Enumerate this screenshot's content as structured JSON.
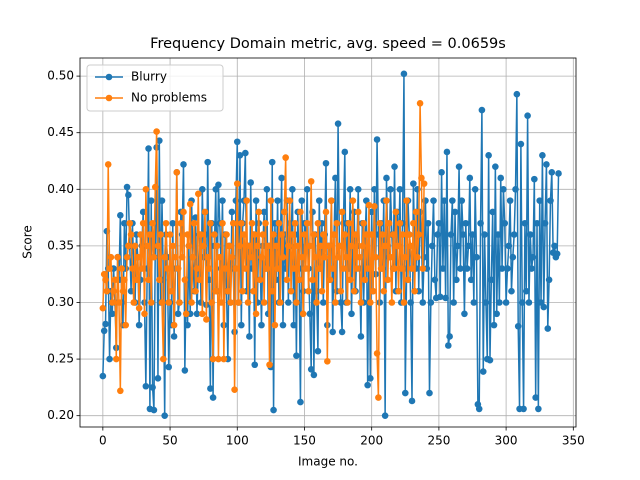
{
  "chart_data": {
    "type": "line",
    "title": "Frequency Domain metric, avg. speed = 0.0659s",
    "x_label": "Image no.",
    "y_label": "Score",
    "xlim": [
      -17,
      352
    ],
    "ylim": [
      0.19,
      0.516
    ],
    "xticks": [
      0,
      50,
      100,
      150,
      200,
      250,
      300,
      350
    ],
    "yticks": [
      {
        "value": 0.2,
        "label": "0.20"
      },
      {
        "value": 0.25,
        "label": "0.25"
      },
      {
        "value": 0.3,
        "label": "0.30"
      },
      {
        "value": 0.35,
        "label": "0.35"
      },
      {
        "value": 0.4,
        "label": "0.40"
      },
      {
        "value": 0.45,
        "label": "0.45"
      },
      {
        "value": 0.5,
        "label": "0.50"
      }
    ],
    "grid": true,
    "legend": "upper left",
    "series": [
      {
        "name": "Blurry",
        "color": "#1f77b4",
        "values": [
          0.235,
          0.275,
          0.281,
          0.363,
          0.33,
          0.25,
          0.31,
          0.29,
          0.33,
          0.3,
          0.26,
          0.34,
          0.32,
          0.377,
          0.3,
          0.28,
          0.37,
          0.33,
          0.402,
          0.395,
          0.35,
          0.31,
          0.37,
          0.33,
          0.3,
          0.36,
          0.34,
          0.28,
          0.32,
          0.35,
          0.38,
          0.3,
          0.226,
          0.33,
          0.436,
          0.206,
          0.39,
          0.225,
          0.205,
          0.35,
          0.437,
          0.233,
          0.443,
          0.3,
          0.39,
          0.32,
          0.2,
          0.36,
          0.34,
          0.243,
          0.3,
          0.28,
          0.37,
          0.27,
          0.33,
          0.415,
          0.29,
          0.3,
          0.38,
          0.36,
          0.422,
          0.24,
          0.32,
          0.28,
          0.35,
          0.29,
          0.39,
          0.34,
          0.31,
          0.375,
          0.29,
          0.33,
          0.36,
          0.3,
          0.4,
          0.34,
          0.36,
          0.298,
          0.424,
          0.32,
          0.224,
          0.37,
          0.216,
          0.35,
          0.4,
          0.31,
          0.404,
          0.37,
          0.33,
          0.39,
          0.28,
          0.36,
          0.31,
          0.25,
          0.35,
          0.3,
          0.38,
          0.33,
          0.274,
          0.39,
          0.442,
          0.3,
          0.43,
          0.28,
          0.37,
          0.39,
          0.432,
          0.31,
          0.35,
          0.27,
          0.406,
          0.33,
          0.36,
          0.245,
          0.39,
          0.3,
          0.37,
          0.34,
          0.28,
          0.35,
          0.38,
          0.33,
          0.4,
          0.29,
          0.35,
          0.243,
          0.424,
          0.205,
          0.37,
          0.32,
          0.39,
          0.3,
          0.35,
          0.41,
          0.28,
          0.36,
          0.33,
          0.39,
          0.3,
          0.37,
          0.35,
          0.4,
          0.28,
          0.36,
          0.253,
          0.38,
          0.33,
          0.212,
          0.39,
          0.31,
          0.37,
          0.35,
          0.4,
          0.33,
          0.29,
          0.241,
          0.38,
          0.236,
          0.36,
          0.31,
          0.257,
          0.39,
          0.33,
          0.37,
          0.3,
          0.36,
          0.423,
          0.28,
          0.35,
          0.33,
          0.39,
          0.274,
          0.36,
          0.41,
          0.31,
          0.458,
          0.35,
          0.3,
          0.274,
          0.37,
          0.433,
          0.3,
          0.37,
          0.33,
          0.4,
          0.29,
          0.36,
          0.38,
          0.31,
          0.35,
          0.4,
          0.33,
          0.27,
          0.37,
          0.3,
          0.35,
          0.39,
          0.227,
          0.36,
          0.233,
          0.38,
          0.31,
          0.4,
          0.325,
          0.444,
          0.36,
          0.3,
          0.37,
          0.33,
          0.39,
          0.2,
          0.41,
          0.35,
          0.34,
          0.4,
          0.36,
          0.33,
          0.42,
          0.31,
          0.38,
          0.35,
          0.4,
          0.3,
          0.37,
          0.502,
          0.22,
          0.33,
          0.39,
          0.36,
          0.3,
          0.213,
          0.405,
          0.35,
          0.33,
          0.4,
          0.31,
          0.38,
          0.36,
          0.3,
          0.34,
          0.39,
          0.33,
          0.37,
          0.22,
          0.3,
          0.35,
          0.39,
          0.32,
          0.304,
          0.36,
          0.37,
          0.305,
          0.415,
          0.33,
          0.39,
          0.304,
          0.433,
          0.262,
          0.27,
          0.36,
          0.39,
          0.3,
          0.38,
          0.32,
          0.35,
          0.42,
          0.33,
          0.39,
          0.36,
          0.29,
          0.37,
          0.33,
          0.35,
          0.41,
          0.32,
          0.36,
          0.3,
          0.4,
          0.34,
          0.21,
          0.206,
          0.37,
          0.47,
          0.239,
          0.36,
          0.3,
          0.25,
          0.43,
          0.249,
          0.32,
          0.38,
          0.28,
          0.42,
          0.29,
          0.36,
          0.3,
          0.41,
          0.33,
          0.4,
          0.37,
          0.3,
          0.33,
          0.35,
          0.39,
          0.31,
          0.34,
          0.36,
          0.4,
          0.484,
          0.279,
          0.206,
          0.44,
          0.3,
          0.206,
          0.37,
          0.31,
          0.465,
          0.3,
          0.36,
          0.33,
          0.34,
          0.409,
          0.216,
          0.37,
          0.206,
          0.39,
          0.3,
          0.43,
          0.296,
          0.37,
          0.422,
          0.277,
          0.32,
          0.39,
          0.415,
          0.344,
          0.35,
          0.34,
          0.343,
          0.414
        ]
      },
      {
        "name": "No problems",
        "color": "#ff7f0e",
        "values": [
          0.295,
          0.325,
          0.32,
          0.31,
          0.422,
          0.33,
          0.34,
          0.3,
          0.31,
          0.32,
          0.25,
          0.34,
          0.3,
          0.222,
          0.33,
          0.31,
          0.32,
          0.28,
          0.34,
          0.35,
          0.37,
          0.36,
          0.33,
          0.3,
          0.35,
          0.32,
          0.34,
          0.295,
          0.36,
          0.33,
          0.37,
          0.29,
          0.4,
          0.35,
          0.32,
          0.36,
          0.3,
          0.37,
          0.34,
          0.402,
          0.451,
          0.35,
          0.32,
          0.36,
          0.3,
          0.25,
          0.34,
          0.37,
          0.33,
          0.3,
          0.36,
          0.31,
          0.35,
          0.28,
          0.34,
          0.415,
          0.33,
          0.3,
          0.37,
          0.34,
          0.38,
          0.32,
          0.29,
          0.36,
          0.35,
          0.387,
          0.3,
          0.34,
          0.37,
          0.31,
          0.33,
          0.396,
          0.32,
          0.36,
          0.29,
          0.35,
          0.38,
          0.285,
          0.34,
          0.33,
          0.37,
          0.3,
          0.25,
          0.36,
          0.31,
          0.35,
          0.25,
          0.34,
          0.3,
          0.37,
          0.25,
          0.33,
          0.36,
          0.31,
          0.35,
          0.3,
          0.34,
          0.37,
          0.223,
          0.33,
          0.405,
          0.3,
          0.35,
          0.37,
          0.31,
          0.36,
          0.33,
          0.39,
          0.3,
          0.35,
          0.34,
          0.37,
          0.31,
          0.36,
          0.29,
          0.35,
          0.38,
          0.32,
          0.34,
          0.36,
          0.3,
          0.37,
          0.33,
          0.35,
          0.245,
          0.39,
          0.31,
          0.36,
          0.28,
          0.35,
          0.33,
          0.37,
          0.3,
          0.36,
          0.34,
          0.38,
          0.428,
          0.32,
          0.35,
          0.39,
          0.31,
          0.36,
          0.33,
          0.37,
          0.3,
          0.35,
          0.32,
          0.38,
          0.34,
          0.29,
          0.36,
          0.33,
          0.37,
          0.31,
          0.35,
          0.407,
          0.32,
          0.36,
          0.34,
          0.3,
          0.37,
          0.33,
          0.35,
          0.31,
          0.36,
          0.34,
          0.38,
          0.248,
          0.35,
          0.32,
          0.39,
          0.33,
          0.36,
          0.3,
          0.37,
          0.34,
          0.35,
          0.31,
          0.38,
          0.33,
          0.36,
          0.34,
          0.3,
          0.37,
          0.32,
          0.35,
          0.39,
          0.31,
          0.36,
          0.33,
          0.38,
          0.34,
          0.3,
          0.35,
          0.37,
          0.32,
          0.36,
          0.33,
          0.386,
          0.3,
          0.36,
          0.31,
          0.385,
          0.34,
          0.255,
          0.216,
          0.37,
          0.33,
          0.36,
          0.31,
          0.35,
          0.39,
          0.32,
          0.37,
          0.34,
          0.3,
          0.36,
          0.33,
          0.38,
          0.35,
          0.31,
          0.37,
          0.33,
          0.36,
          0.3,
          0.34,
          0.39,
          0.32,
          0.36,
          0.35,
          0.33,
          0.37,
          0.31,
          0.38,
          0.34,
          0.36,
          0.476,
          0.41,
          0.33,
          0.405
        ]
      }
    ]
  }
}
